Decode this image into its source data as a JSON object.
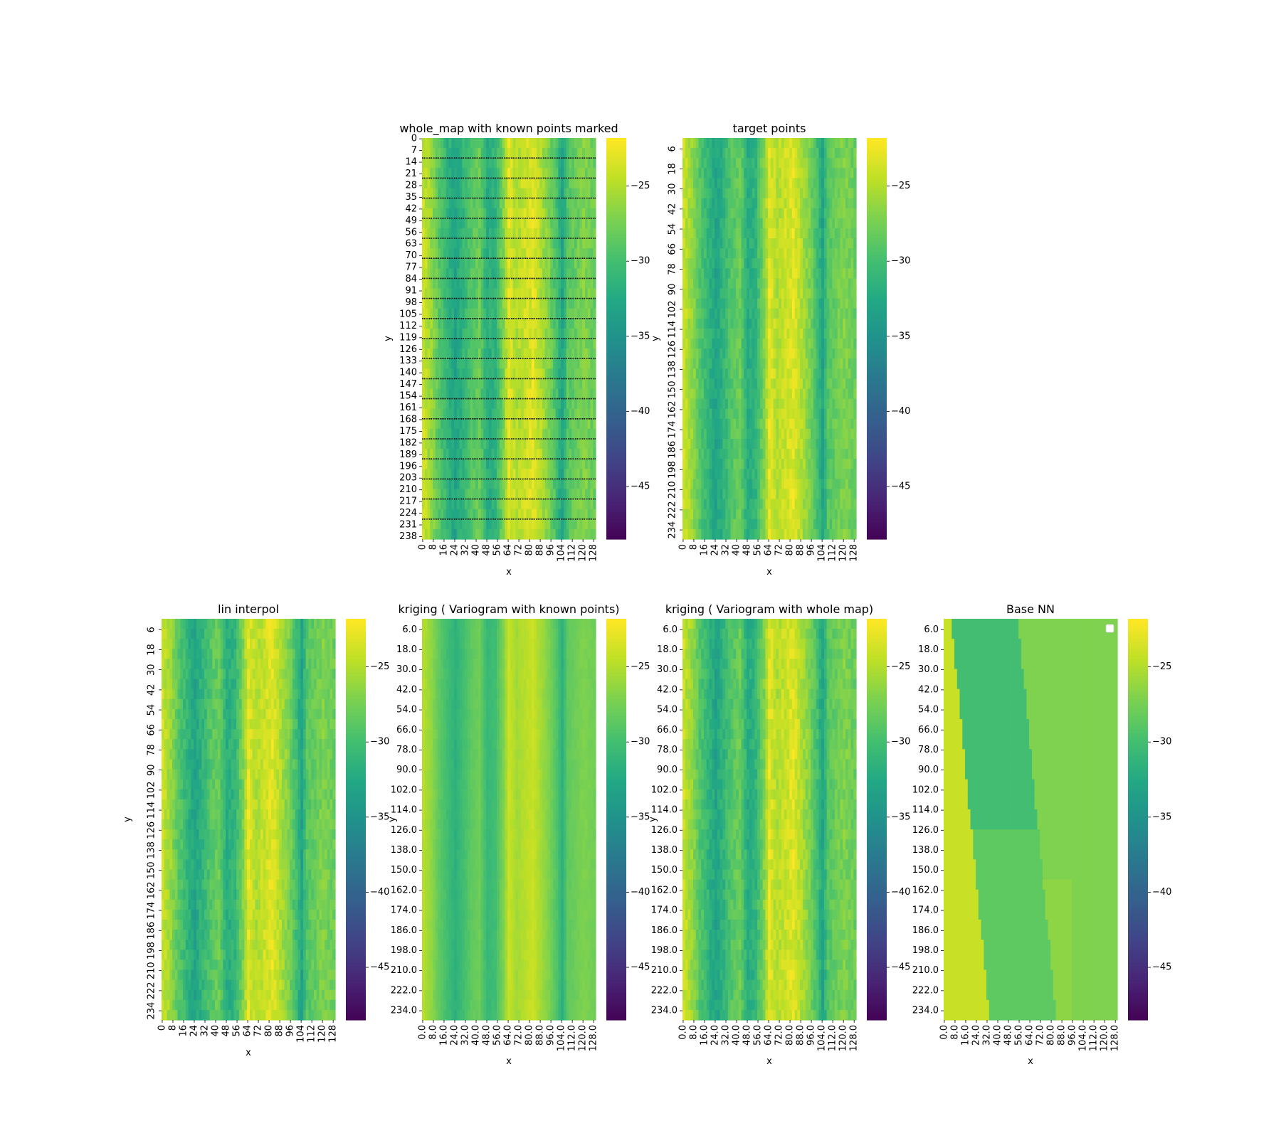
{
  "colormap": {
    "name": "viridis",
    "low": "#440154",
    "high": "#fde725"
  },
  "colorbar": {
    "min": -48.5,
    "max": -21.8,
    "ticks": [
      -25,
      -30,
      -35,
      -40,
      -45
    ]
  },
  "chart_data": [
    {
      "type": "heatmap",
      "title": "whole_map with known points marked",
      "xlabel": "x",
      "ylabel": "y",
      "pattern": "columns",
      "rows": 240,
      "cols": 130,
      "xticks": [
        "0",
        "8",
        "16",
        "24",
        "32",
        "40",
        "48",
        "56",
        "64",
        "72",
        "80",
        "88",
        "96",
        "104",
        "112",
        "120",
        "128"
      ],
      "yticks": [
        "0",
        "7",
        "14",
        "21",
        "28",
        "35",
        "42",
        "49",
        "56",
        "63",
        "70",
        "77",
        "84",
        "91",
        "98",
        "105",
        "112",
        "119",
        "126",
        "133",
        "140",
        "147",
        "154",
        "161",
        "168",
        "175",
        "182",
        "189",
        "196",
        "203",
        "210",
        "217",
        "224",
        "231",
        "238"
      ],
      "known_point_rows": [
        12,
        24,
        36,
        48,
        60,
        72,
        84,
        96,
        108,
        120,
        132,
        144,
        156,
        168,
        180,
        192,
        204,
        216,
        228
      ],
      "column_profile": [
        {
          "x": 0,
          "v": -24
        },
        {
          "x": 6,
          "v": -26
        },
        {
          "x": 12,
          "v": -29
        },
        {
          "x": 18,
          "v": -31
        },
        {
          "x": 24,
          "v": -33
        },
        {
          "x": 30,
          "v": -31
        },
        {
          "x": 36,
          "v": -29
        },
        {
          "x": 42,
          "v": -28
        },
        {
          "x": 48,
          "v": -32
        },
        {
          "x": 54,
          "v": -31
        },
        {
          "x": 60,
          "v": -27
        },
        {
          "x": 64,
          "v": -23
        },
        {
          "x": 70,
          "v": -25
        },
        {
          "x": 76,
          "v": -24
        },
        {
          "x": 82,
          "v": -23
        },
        {
          "x": 88,
          "v": -25
        },
        {
          "x": 94,
          "v": -27
        },
        {
          "x": 100,
          "v": -30
        },
        {
          "x": 104,
          "v": -33
        },
        {
          "x": 108,
          "v": -29
        },
        {
          "x": 114,
          "v": -28
        },
        {
          "x": 120,
          "v": -27
        },
        {
          "x": 129,
          "v": -28
        }
      ]
    },
    {
      "type": "heatmap",
      "title": "target points",
      "xlabel": "x",
      "ylabel": "y",
      "pattern": "columns",
      "rows": 240,
      "cols": 130,
      "xticks": [
        "0",
        "8",
        "16",
        "24",
        "32",
        "40",
        "48",
        "56",
        "64",
        "72",
        "80",
        "88",
        "96",
        "104",
        "112",
        "120",
        "128"
      ],
      "yticks": [
        "6",
        "18",
        "30",
        "42",
        "54",
        "66",
        "78",
        "90",
        "102",
        "114",
        "126",
        "138",
        "150",
        "162",
        "174",
        "186",
        "198",
        "210",
        "222",
        "234"
      ]
    },
    {
      "type": "heatmap",
      "title": "lin interpol",
      "xlabel": "x",
      "ylabel": "y",
      "pattern": "columns",
      "rows": 240,
      "cols": 130,
      "xticks": [
        "0",
        "8",
        "16",
        "24",
        "32",
        "40",
        "48",
        "56",
        "64",
        "72",
        "80",
        "88",
        "96",
        "104",
        "112",
        "120",
        "128"
      ],
      "yticks": [
        "6",
        "18",
        "30",
        "42",
        "54",
        "66",
        "78",
        "90",
        "102",
        "114",
        "126",
        "138",
        "150",
        "162",
        "174",
        "186",
        "198",
        "210",
        "222",
        "234"
      ]
    },
    {
      "type": "heatmap",
      "title": "kriging  ( Variogram with known points)",
      "xlabel": "x",
      "ylabel": "y",
      "pattern": "smooth",
      "rows": 240,
      "cols": 130,
      "xticks": [
        "0.0",
        "8.0",
        "16.0",
        "24.0",
        "32.0",
        "40.0",
        "48.0",
        "56.0",
        "64.0",
        "72.0",
        "80.0",
        "88.0",
        "96.0",
        "104.0",
        "112.0",
        "120.0",
        "128.0"
      ],
      "yticks": [
        "6.0",
        "18.0",
        "30.0",
        "42.0",
        "54.0",
        "66.0",
        "78.0",
        "90.0",
        "102.0",
        "114.0",
        "126.0",
        "138.0",
        "150.0",
        "162.0",
        "174.0",
        "186.0",
        "198.0",
        "210.0",
        "222.0",
        "234.0"
      ]
    },
    {
      "type": "heatmap",
      "title": "kriging ( Variogram with whole map)",
      "xlabel": "x",
      "ylabel": "y",
      "pattern": "columns",
      "rows": 240,
      "cols": 130,
      "xticks": [
        "0.0",
        "8.0",
        "16.0",
        "24.0",
        "32.0",
        "40.0",
        "48.0",
        "56.0",
        "64.0",
        "72.0",
        "80.0",
        "88.0",
        "96.0",
        "104.0",
        "112.0",
        "120.0",
        "128.0"
      ],
      "yticks": [
        "6.0",
        "18.0",
        "30.0",
        "42.0",
        "54.0",
        "66.0",
        "78.0",
        "90.0",
        "102.0",
        "114.0",
        "126.0",
        "138.0",
        "150.0",
        "162.0",
        "174.0",
        "186.0",
        "198.0",
        "210.0",
        "222.0",
        "234.0"
      ]
    },
    {
      "type": "heatmap",
      "title": "Base NN",
      "xlabel": "x",
      "ylabel": "",
      "pattern": "nn",
      "rows": 240,
      "cols": 130,
      "xticks": [
        "0.0",
        "8.0",
        "16.0",
        "24.0",
        "32.0",
        "40.0",
        "48.0",
        "56.0",
        "64.0",
        "72.0",
        "80.0",
        "88.0",
        "96.0",
        "104.0",
        "112.0",
        "120.0",
        "128.0"
      ],
      "yticks": [
        "6.0",
        "18.0",
        "30.0",
        "42.0",
        "54.0",
        "66.0",
        "78.0",
        "90.0",
        "102.0",
        "114.0",
        "126.0",
        "138.0",
        "150.0",
        "162.0",
        "174.0",
        "186.0",
        "198.0",
        "210.0",
        "222.0",
        "234.0"
      ],
      "legend": "top-right",
      "nn_values": {
        "left_band": -24,
        "dark_band": -30,
        "right_band": -27
      }
    }
  ]
}
